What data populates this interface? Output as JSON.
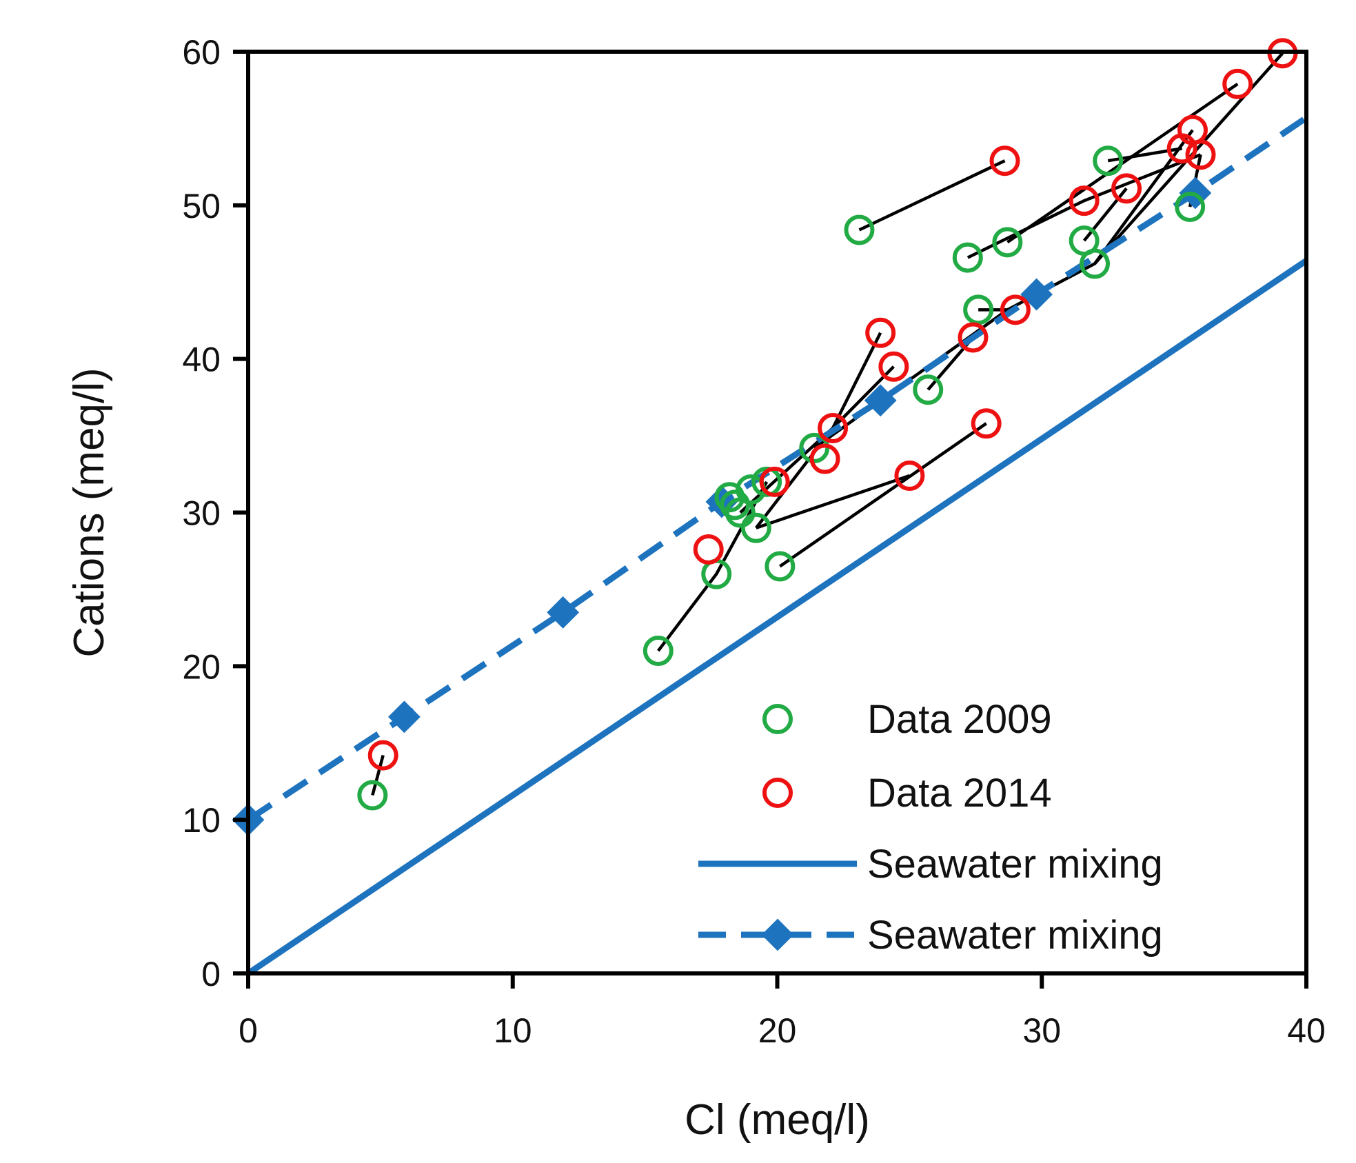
{
  "chart_data": {
    "type": "scatter",
    "title": "",
    "xlabel": "Cl (meq/l)",
    "ylabel": "Cations (meq/l)",
    "xlim": [
      0,
      40
    ],
    "ylim": [
      0,
      60
    ],
    "xticks": [
      0,
      10,
      20,
      30,
      40
    ],
    "yticks": [
      0,
      10,
      20,
      30,
      40,
      50,
      60
    ],
    "grid": false,
    "legend_position": "bottom-right",
    "colors": {
      "data2009": "#22aa44",
      "data2014": "#ee1111",
      "seawater": "#1e73be",
      "pair_line": "#000000",
      "axis": "#000000"
    },
    "series": [
      {
        "name": "Data 2009",
        "kind": "open-circle",
        "points": [
          [
            4.7,
            11.6
          ],
          [
            15.5,
            21.0
          ],
          [
            17.7,
            26.0
          ],
          [
            18.2,
            31.0
          ],
          [
            18.4,
            30.5
          ],
          [
            18.6,
            30.0
          ],
          [
            19.0,
            31.5
          ],
          [
            19.2,
            29.0
          ],
          [
            19.6,
            32.0
          ],
          [
            20.1,
            26.5
          ],
          [
            21.4,
            34.2
          ],
          [
            23.1,
            48.4
          ],
          [
            25.7,
            38.0
          ],
          [
            27.2,
            46.6
          ],
          [
            27.6,
            43.2
          ],
          [
            28.7,
            47.6
          ],
          [
            31.6,
            47.7
          ],
          [
            32.0,
            46.2
          ],
          [
            32.5,
            52.9
          ],
          [
            35.6,
            49.9
          ]
        ]
      },
      {
        "name": "Data 2014",
        "kind": "open-circle",
        "points": [
          [
            5.1,
            14.2
          ],
          [
            17.4,
            27.6
          ],
          [
            19.9,
            32.0
          ],
          [
            21.8,
            33.5
          ],
          [
            22.1,
            35.5
          ],
          [
            23.9,
            41.7
          ],
          [
            24.4,
            39.5
          ],
          [
            25.0,
            32.4
          ],
          [
            27.4,
            41.4
          ],
          [
            27.9,
            35.8
          ],
          [
            28.6,
            52.9
          ],
          [
            29.0,
            43.2
          ],
          [
            31.6,
            50.3
          ],
          [
            33.2,
            51.1
          ],
          [
            35.3,
            53.7
          ],
          [
            35.7,
            54.9
          ],
          [
            36.0,
            53.3
          ],
          [
            37.4,
            57.9
          ],
          [
            39.1,
            59.9
          ]
        ]
      },
      {
        "name": "Seawater mixing",
        "kind": "solid-line",
        "points": [
          [
            0,
            0
          ],
          [
            40,
            46.4
          ]
        ]
      },
      {
        "name": "Seawater mixing",
        "kind": "dashed-line-diamond",
        "points": [
          [
            0,
            10.0
          ],
          [
            5.9,
            16.7
          ],
          [
            11.9,
            23.5
          ],
          [
            17.9,
            30.7
          ],
          [
            23.9,
            37.3
          ],
          [
            29.8,
            44.2
          ],
          [
            35.8,
            50.8
          ],
          [
            40,
            55.7
          ]
        ]
      }
    ],
    "pair_lines": [
      [
        [
          4.7,
          11.6
        ],
        [
          5.1,
          14.2
        ]
      ],
      [
        [
          15.5,
          21.0
        ],
        [
          17.7,
          26.0
        ],
        [
          19.6,
          32.0
        ]
      ],
      [
        [
          23.1,
          48.4
        ],
        [
          28.6,
          52.9
        ]
      ],
      [
        [
          20.1,
          26.5
        ],
        [
          27.9,
          35.8
        ]
      ],
      [
        [
          19.2,
          29.0
        ],
        [
          25.0,
          32.4
        ]
      ],
      [
        [
          19.2,
          29.0
        ],
        [
          22.1,
          35.5
        ],
        [
          23.9,
          41.7
        ]
      ],
      [
        [
          18.6,
          30.0
        ],
        [
          22.1,
          35.5
        ],
        [
          24.4,
          39.5
        ]
      ],
      [
        [
          21.4,
          34.2
        ],
        [
          28.7,
          43.2
        ],
        [
          32.0,
          46.2
        ],
        [
          39.1,
          59.9
        ]
      ],
      [
        [
          25.7,
          38.0
        ],
        [
          27.4,
          41.4
        ]
      ],
      [
        [
          27.6,
          43.2
        ],
        [
          29.0,
          43.2
        ]
      ],
      [
        [
          27.2,
          46.6
        ],
        [
          31.6,
          50.3
        ],
        [
          36.0,
          53.3
        ]
      ],
      [
        [
          28.7,
          47.6
        ],
        [
          37.4,
          57.9
        ]
      ],
      [
        [
          31.6,
          47.7
        ],
        [
          33.2,
          51.1
        ]
      ],
      [
        [
          32.5,
          52.9
        ],
        [
          35.3,
          53.7
        ]
      ],
      [
        [
          32.0,
          46.2
        ],
        [
          35.7,
          54.9
        ]
      ],
      [
        [
          35.6,
          49.9
        ],
        [
          36.0,
          53.3
        ]
      ]
    ],
    "legend": [
      {
        "label": "Data 2009",
        "marker": "open-circle",
        "color_key": "data2009"
      },
      {
        "label": "Data 2014",
        "marker": "open-circle",
        "color_key": "data2014"
      },
      {
        "label": "Seawater mixing",
        "marker": "solid-line",
        "color_key": "seawater"
      },
      {
        "label": "Seawater mixing",
        "marker": "dashed-line-diamond",
        "color_key": "seawater"
      }
    ]
  }
}
